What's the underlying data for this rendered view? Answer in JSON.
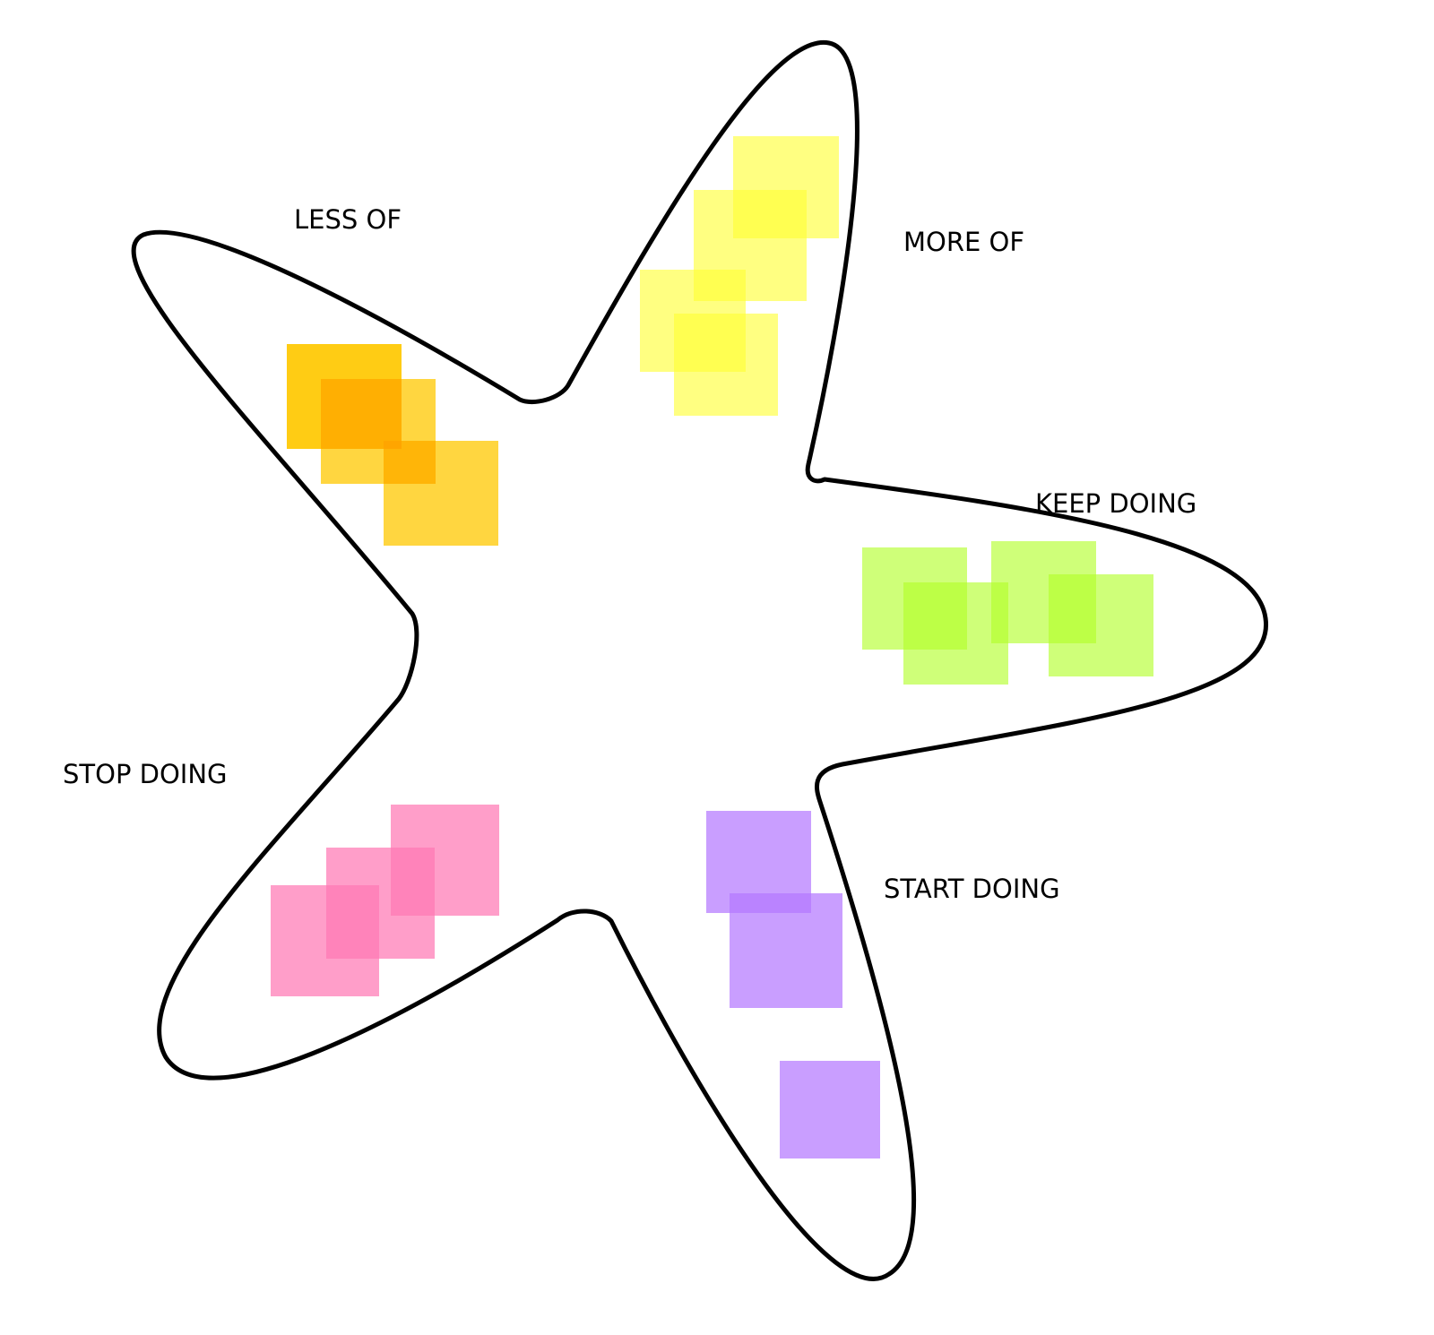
{
  "labels": {
    "less_of": "LESS OF",
    "more_of": "MORE OF",
    "keep_doing": "KEEP DOING",
    "stop_doing": "STOP DOING",
    "start_doing": "START DOING"
  },
  "colors": {
    "outline": "#000000",
    "less_of_notes": "#FFC800",
    "more_of_notes": "#FFFF33",
    "keep_doing_notes": "#B2FF26",
    "stop_doing_notes": "#FF78B4",
    "start_doing_notes": "#B478FF"
  },
  "sticky_note_counts": {
    "less_of": 3,
    "more_of": 4,
    "keep_doing": 4,
    "stop_doing": 3,
    "start_doing": 3
  }
}
